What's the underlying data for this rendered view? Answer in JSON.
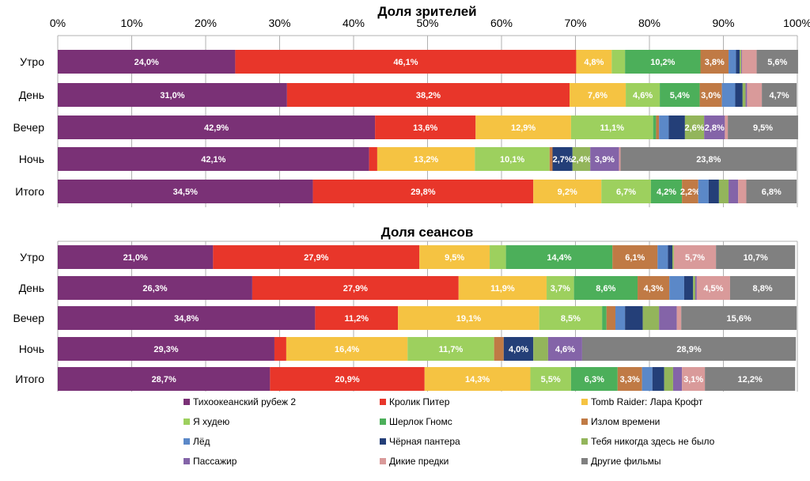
{
  "chart_data": [
    {
      "type": "bar",
      "orientation": "horizontal",
      "stacked": "percent",
      "title": "Доля зрителей",
      "xlim": [
        0,
        100
      ],
      "ticks": [
        "0%",
        "10%",
        "20%",
        "30%",
        "40%",
        "50%",
        "60%",
        "70%",
        "80%",
        "90%",
        "100%"
      ],
      "grid": true,
      "categories": [
        "Утро",
        "День",
        "Вечер",
        "Ночь",
        "Итого"
      ],
      "values": [
        [
          24.0,
          46.1,
          4.8,
          1.8,
          10.2,
          3.8,
          1.0,
          0.5,
          0.2,
          0.1,
          2.0,
          5.6
        ],
        [
          31.0,
          38.2,
          7.6,
          4.6,
          5.4,
          3.0,
          1.8,
          1.0,
          0.4,
          0.2,
          2.0,
          4.7
        ],
        [
          42.9,
          13.6,
          12.9,
          11.1,
          0.4,
          0.4,
          1.3,
          2.2,
          2.6,
          2.8,
          0.4,
          9.5
        ],
        [
          42.1,
          1.1,
          13.2,
          10.1,
          0.0,
          0.4,
          0.0,
          2.7,
          2.4,
          3.9,
          0.2,
          23.8
        ],
        [
          34.5,
          29.8,
          9.2,
          6.7,
          4.2,
          2.2,
          1.4,
          1.4,
          1.3,
          1.3,
          1.1,
          6.8
        ]
      ],
      "labels": [
        [
          "24,0%",
          "46,1%",
          "4,8%",
          "",
          "10,2%",
          "3,8%",
          "",
          "",
          "",
          "",
          "",
          "5,6%"
        ],
        [
          "31,0%",
          "38,2%",
          "7,6%",
          "4,6%",
          "5,4%",
          "3,0%",
          "",
          "",
          "",
          "",
          "",
          "4,7%"
        ],
        [
          "42,9%",
          "13,6%",
          "12,9%",
          "11,1%",
          "",
          "",
          "",
          "",
          "2,6%",
          "2,8%",
          "",
          "9,5%"
        ],
        [
          "42,1%",
          "",
          "13,2%",
          "10,1%",
          "",
          "",
          "",
          "2,7%",
          "2,4%",
          "3,9%",
          "",
          "23,8%"
        ],
        [
          "34,5%",
          "29,8%",
          "9,2%",
          "6,7%",
          "4,2%",
          "2,2%",
          "",
          "",
          "",
          "",
          "",
          "6,8%"
        ]
      ]
    },
    {
      "type": "bar",
      "orientation": "horizontal",
      "stacked": "percent",
      "title": "Доля сеансов",
      "xlim": [
        0,
        100
      ],
      "grid": true,
      "categories": [
        "Утро",
        "День",
        "Вечер",
        "Ночь",
        "Итого"
      ],
      "values": [
        [
          21.0,
          27.9,
          9.5,
          2.2,
          14.4,
          6.1,
          1.4,
          0.6,
          0.2,
          0.0,
          5.7,
          10.7
        ],
        [
          26.3,
          27.9,
          11.9,
          3.7,
          8.6,
          4.3,
          2.0,
          1.2,
          0.3,
          0.2,
          4.5,
          8.8
        ],
        [
          34.8,
          11.2,
          19.1,
          8.5,
          0.6,
          1.2,
          1.3,
          2.4,
          2.2,
          2.4,
          0.6,
          15.6
        ],
        [
          29.3,
          1.6,
          16.4,
          11.7,
          0.0,
          1.3,
          0.0,
          4.0,
          2.0,
          4.6,
          0.0,
          28.9
        ],
        [
          28.7,
          20.9,
          14.3,
          5.5,
          6.3,
          3.3,
          1.4,
          1.6,
          1.2,
          1.2,
          3.1,
          12.2
        ]
      ],
      "labels": [
        [
          "21,0%",
          "27,9%",
          "9,5%",
          "",
          "14,4%",
          "6,1%",
          "",
          "",
          "",
          "",
          "5,7%",
          "10,7%"
        ],
        [
          "26,3%",
          "27,9%",
          "11,9%",
          "3,7%",
          "8,6%",
          "4,3%",
          "",
          "",
          "",
          "",
          "4,5%",
          "8,8%"
        ],
        [
          "34,8%",
          "11,2%",
          "19,1%",
          "8,5%",
          "",
          "",
          "",
          "",
          "",
          "",
          "",
          "15,6%"
        ],
        [
          "29,3%",
          "",
          "16,4%",
          "11,7%",
          "",
          "",
          "",
          "4,0%",
          "",
          "4,6%",
          "",
          "28,9%"
        ],
        [
          "28,7%",
          "20,9%",
          "14,3%",
          "5,5%",
          "6,3%",
          "3,3%",
          "",
          "",
          "",
          "",
          "3,1%",
          "12,2%"
        ]
      ]
    }
  ],
  "legend": {
    "placement": "bottom",
    "series": [
      {
        "name": "Тихоокеанский рубеж 2",
        "color": "#7a3176"
      },
      {
        "name": "Кролик Питер",
        "color": "#e8362a"
      },
      {
        "name": "Tomb Raider: Лара Крофт",
        "color": "#f5c342"
      },
      {
        "name": "Я худею",
        "color": "#9dd05e"
      },
      {
        "name": "Шерлок Гномс",
        "color": "#4caf5a"
      },
      {
        "name": "Излом времени",
        "color": "#c07a45"
      },
      {
        "name": "Лёд",
        "color": "#5b88c8"
      },
      {
        "name": "Чёрная пантера",
        "color": "#243f78"
      },
      {
        "name": "Тебя никогда здесь не было",
        "color": "#93b55b"
      },
      {
        "name": "Пассажир",
        "color": "#8464a8"
      },
      {
        "name": "Дикие предки",
        "color": "#d99a9a"
      },
      {
        "name": "Другие фильмы",
        "color": "#808080"
      }
    ]
  }
}
